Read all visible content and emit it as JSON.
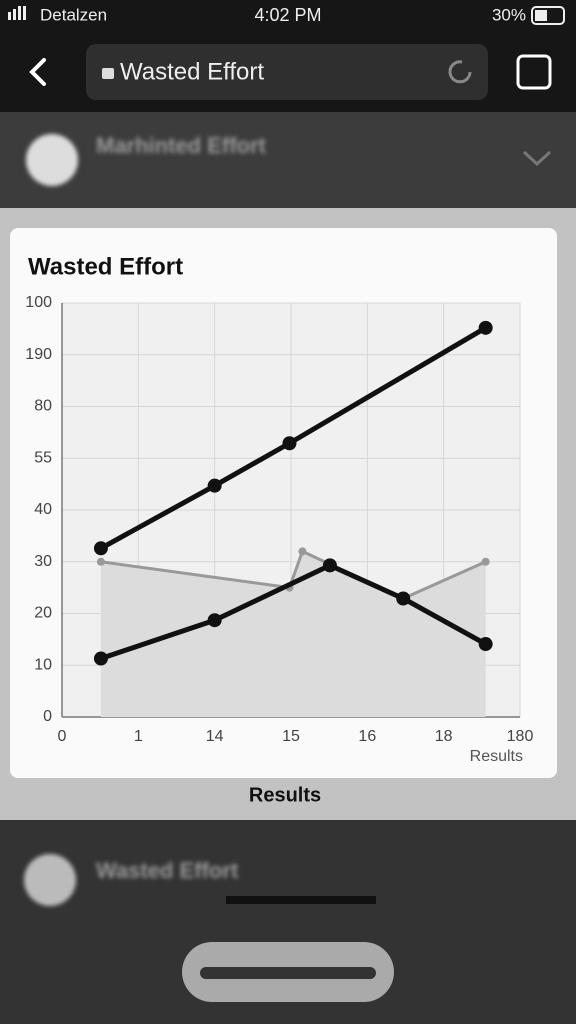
{
  "status_bar": {
    "carrier": "Detalzen",
    "time": "4:02 PM",
    "battery": "30%"
  },
  "address_bar": {
    "title": "Wasted Effort"
  },
  "top_item": {
    "title": "Marhinted Effort"
  },
  "chart_data": {
    "type": "line",
    "title": "Wasted Effort",
    "x_label": "Results",
    "xlim": [
      0,
      6
    ],
    "xticks": [
      0,
      1,
      {
        "value": 2,
        "label": "14"
      },
      {
        "value": 3,
        "label": "15"
      },
      {
        "value": 4,
        "label": "16"
      },
      {
        "value": 5,
        "label": "18"
      },
      {
        "value": 6,
        "label": "180"
      }
    ],
    "ylim": [
      0,
      80
    ],
    "yticks": [
      0,
      10,
      20,
      30,
      40,
      {
        "value": 50,
        "label": "55"
      },
      {
        "value": 60,
        "label": "80"
      },
      {
        "value": 70,
        "label": "190"
      },
      {
        "value": 80,
        "label": "100"
      }
    ],
    "grid": true,
    "series": [
      {
        "color": "#999999",
        "area": true,
        "x": [
          0.51,
          2.98,
          3.15,
          4.47,
          5.55
        ],
        "values": [
          30,
          25,
          32,
          22.9,
          30
        ]
      },
      {
        "color": "#111111",
        "x": [
          0.51,
          2.0,
          2.98,
          5.55
        ],
        "values": [
          32.6,
          44.7,
          52.9,
          75.2
        ]
      },
      {
        "color": "#111111",
        "x": [
          0.51,
          2.0,
          3.51,
          4.47,
          5.55
        ],
        "values": [
          11.3,
          18.7,
          29.3,
          22.9,
          14.1
        ]
      }
    ]
  },
  "card_footer": "Results",
  "bottom_item": {
    "title": "Wasted Effort"
  }
}
